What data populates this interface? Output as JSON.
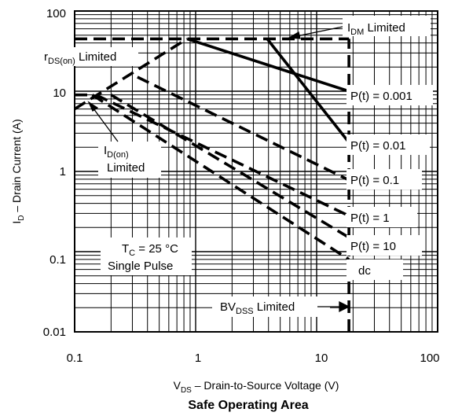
{
  "chart_data": {
    "type": "line",
    "title": "Safe Operating Area",
    "xlabel": "Drain-to-Source Voltage (V)",
    "xlabel_symbol": "V",
    "xlabel_sub": "DS",
    "ylabel": "Drain Current (A)",
    "ylabel_symbol": "I",
    "ylabel_sub": "D",
    "x_scale": "log",
    "y_scale": "log",
    "xlim": [
      0.1,
      100
    ],
    "ylim": [
      0.01,
      100
    ],
    "grid": true,
    "x_ticks": [
      "0.1",
      "1",
      "10",
      "100"
    ],
    "y_ticks": [
      "0.01",
      "0.1",
      "1",
      "10",
      "100"
    ],
    "series": [
      {
        "name": "P(t) = 0.001",
        "style": "solid",
        "x": [
          0.85,
          18.5
        ],
        "y": [
          45,
          10
        ]
      },
      {
        "name": "P(t) = 0.01",
        "style": "solid",
        "x": [
          3.9,
          18.5
        ],
        "y": [
          45,
          2.3
        ]
      },
      {
        "name": "P(t) = 0.1",
        "style": "dashed",
        "x": [
          0.33,
          18.5
        ],
        "y": [
          15,
          0.78
        ]
      },
      {
        "name": "P(t) = 1",
        "style": "dashed",
        "x": [
          0.15,
          18.5
        ],
        "y": [
          9,
          0.28
        ]
      },
      {
        "name": "P(t) = 10",
        "style": "dashed",
        "x": [
          0.2,
          18.5
        ],
        "y": [
          9,
          0.15
        ]
      },
      {
        "name": "dc",
        "style": "dashed",
        "x": [
          0.14,
          18.5
        ],
        "y": [
          9,
          0.08
        ]
      }
    ],
    "limits": [
      {
        "name": "IDM Limited",
        "style": "dashed",
        "x": [
          0.1,
          18.5
        ],
        "y": [
          45,
          45
        ]
      },
      {
        "name": "ID(on) Limited",
        "style": "dashed",
        "x": [
          0.1,
          0.14
        ],
        "y": [
          9,
          9
        ]
      },
      {
        "name": "rDS(on) Limited",
        "style": "dashed",
        "x": [
          0.1,
          0.85
        ],
        "y": [
          6,
          45
        ]
      },
      {
        "name": "BVDSS Limited",
        "style": "dashed",
        "x": [
          18.5,
          18.5
        ],
        "y": [
          0.01,
          45
        ]
      }
    ],
    "annotations": {
      "idm": {
        "main": "I",
        "sub": "DM",
        "rest": " Limited"
      },
      "rds": {
        "main": "r",
        "sub": "DS(on)",
        "rest": " Limited"
      },
      "idon": {
        "main": "I",
        "sub": "D(on)",
        "line2": "Limited"
      },
      "bvdss": {
        "main": "BV",
        "sub": "DSS",
        "rest": " Limited"
      },
      "tc": {
        "main": "T",
        "sub": "C",
        "rest": " = 25 °C"
      },
      "pulse": "Single Pulse"
    }
  }
}
